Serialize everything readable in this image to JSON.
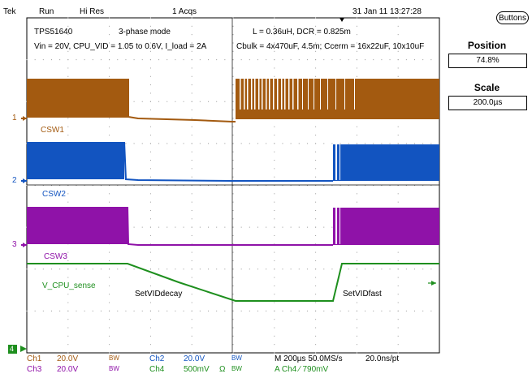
{
  "status": {
    "brand": "Tek",
    "run_state": "Run",
    "acq_mode": "Hi Res",
    "acq_count": "1 Acqs",
    "datetime": "31 Jan 11 13:27:28"
  },
  "side_panel": {
    "buttons_label": "Buttons",
    "position_label": "Position",
    "position_value": "74.8%",
    "scale_label": "Scale",
    "scale_value": "200.0µs"
  },
  "annotations": {
    "title1": "TPS51640",
    "title2": "3-phase mode",
    "cond1": "Vin = 20V, CPU_VID = 1.05 to 0.6V, I_load = 2A",
    "cond2": "L = 0.36uH, DCR = 0.825m",
    "cond3": "Cbulk = 4x470uF, 4.5m;  Ccerm = 16x22uF, 10x10uF",
    "csw1": "CSW1",
    "csw2": "CSW2",
    "csw3": "CSW3",
    "vcpu": "V_CPU_sense",
    "decay": "SetVIDdecay",
    "fast": "SetVIDfast"
  },
  "markers": {
    "m1": "1",
    "m2": "2",
    "m3": "3",
    "m4": "4"
  },
  "channels": {
    "ch1_name": "Ch1",
    "ch1_scale": "20.0V",
    "ch1_bw": "BW",
    "ch2_name": "Ch2",
    "ch2_scale": "20.0V",
    "ch2_bw": "BW",
    "ch3_name": "Ch3",
    "ch3_scale": "20.0V",
    "ch3_bw": "BW",
    "ch4_name": "Ch4",
    "ch4_scale": "500mV",
    "ch4_ohm": "Ω",
    "ch4_bw": "BW"
  },
  "timebase": {
    "horizontal": "M 200µs 50.0MS/s",
    "record": "20.0ns/pt",
    "trigger": "A  Ch4  ∕  790mV"
  },
  "colors": {
    "ch1": "#a35a10",
    "ch2": "#1254c0",
    "ch3": "#8f12a8",
    "ch4": "#1e8f1e"
  }
}
